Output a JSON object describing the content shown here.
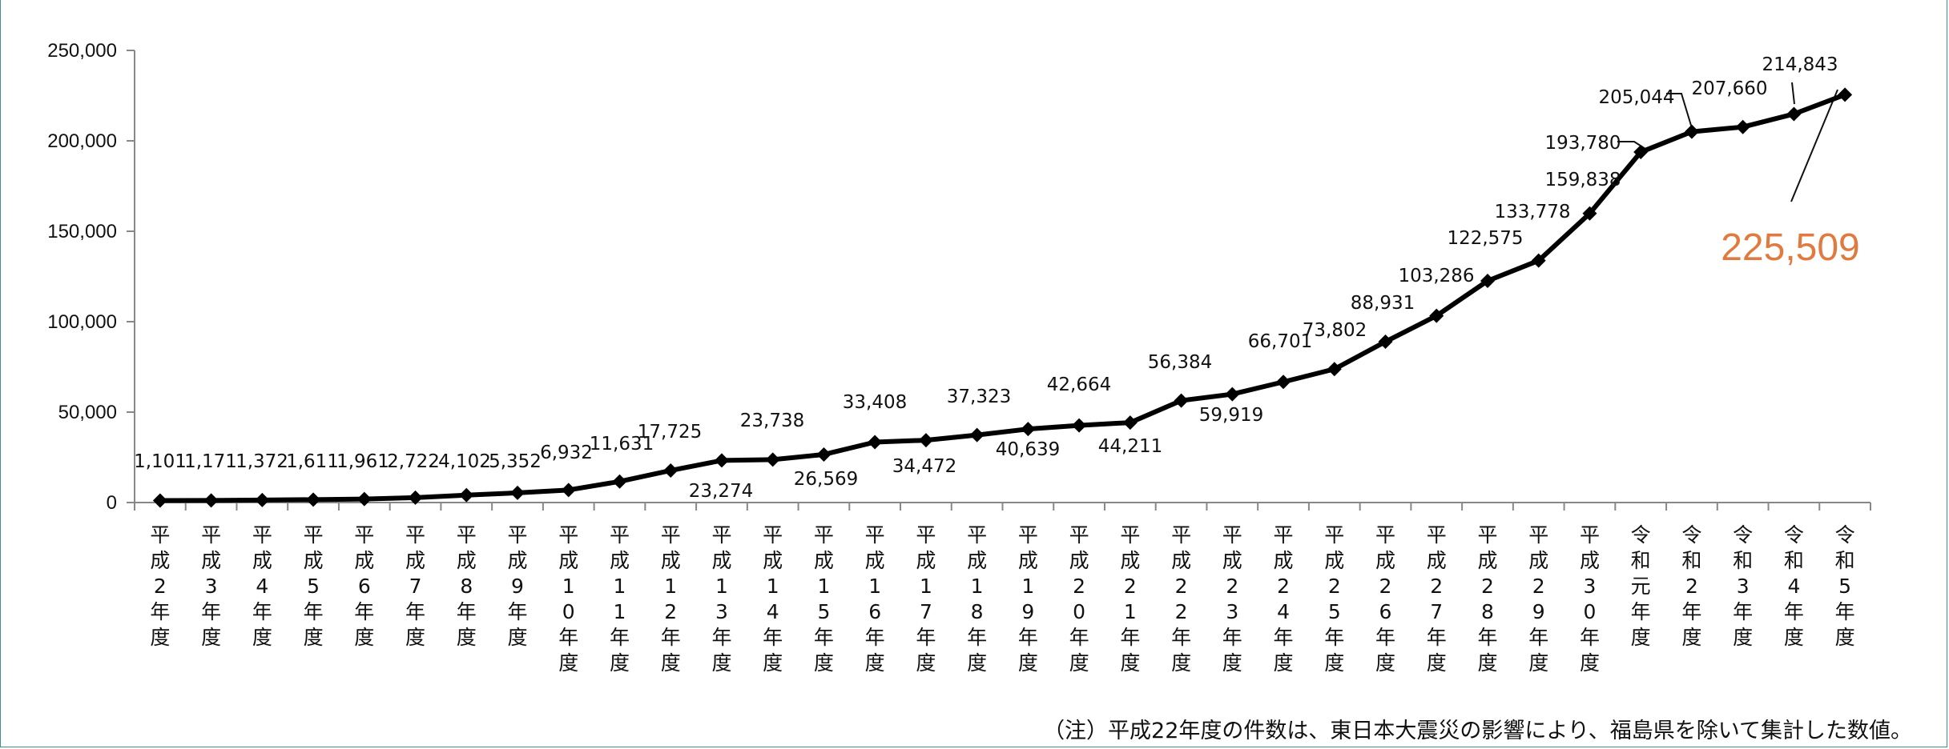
{
  "chart_data": {
    "type": "line",
    "categories": [
      "平成2年度",
      "平成3年度",
      "平成4年度",
      "平成5年度",
      "平成6年度",
      "平成7年度",
      "平成8年度",
      "平成9年度",
      "平成10年度",
      "平成11年度",
      "平成12年度",
      "平成13年度",
      "平成14年度",
      "平成15年度",
      "平成16年度",
      "平成17年度",
      "平成18年度",
      "平成19年度",
      "平成20年度",
      "平成21年度",
      "平成22年度",
      "平成23年度",
      "平成24年度",
      "平成25年度",
      "平成26年度",
      "平成27年度",
      "平成28年度",
      "平成29年度",
      "平成30年度",
      "令和元年度",
      "令和2年度",
      "令和3年度",
      "令和4年度",
      "令和5年度"
    ],
    "values": [
      1101,
      1171,
      1372,
      1611,
      1961,
      2722,
      4102,
      5352,
      6932,
      11631,
      17725,
      23274,
      23738,
      26569,
      33408,
      34472,
      37323,
      40639,
      42664,
      44211,
      56384,
      59919,
      66701,
      73802,
      88931,
      103286,
      122575,
      133778,
      159838,
      193780,
      205044,
      207660,
      214843,
      225509
    ],
    "data_labels": [
      "1,101",
      "1,171",
      "1,372",
      "1,611",
      "1,961",
      "2,722",
      "4,102",
      "5,352",
      "6,932",
      "11,631",
      "17,725",
      "23,274",
      "23,738",
      "26,569",
      "33,408",
      "34,472",
      "37,323",
      "40,639",
      "42,664",
      "44,211",
      "56,384",
      "59,919",
      "66,701",
      "73,802",
      "88,931",
      "103,286",
      "122,575",
      "133,778",
      "159,838",
      "193,780",
      "205,044",
      "207,660",
      "214,843",
      "225,509"
    ],
    "ylim": [
      0,
      250000
    ],
    "yticks": [
      0,
      50000,
      100000,
      150000,
      200000,
      250000
    ],
    "ytick_labels": [
      "0",
      "50,000",
      "100,000",
      "150,000",
      "200,000",
      "250,000"
    ],
    "grid": false,
    "legend": "none",
    "line_color": "#000000",
    "highlight_color": "#e07a3f"
  },
  "highlight": {
    "value_label": "225,509"
  },
  "note": "（注）平成22年度の件数は、東日本大震災の影響により、福島県を除いて集計した数値。"
}
